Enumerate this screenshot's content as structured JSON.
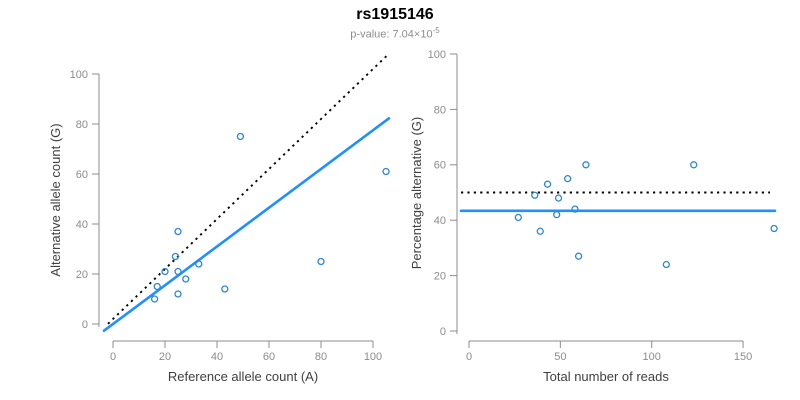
{
  "header": {
    "title": "rs1915146",
    "pvalue_base": "p-value: 7.04×10",
    "pvalue_exponent": "-5"
  },
  "colors": {
    "line_blue": "#1E90FF",
    "point_blue": "#2E86D8",
    "dotted_black": "#000000",
    "axis_gray": "#8C8C8C",
    "axis_title_dark": "#3F3F3F",
    "title_black": "#000000",
    "subtitle_gray": "#8E8E8E"
  },
  "chart_data": [
    {
      "type": "scatter",
      "name": "allele-count-scatter",
      "xlabel": "Reference allele count (A)",
      "ylabel": "Alternative allele count (G)",
      "xlim": [
        0,
        105
      ],
      "ylim": [
        0,
        107
      ],
      "xticks": [
        0,
        20,
        40,
        60,
        80,
        100
      ],
      "yticks": [
        0,
        20,
        40,
        60,
        80,
        100
      ],
      "grid": false,
      "legend": "none",
      "points": [
        [
          16,
          10
        ],
        [
          17,
          15
        ],
        [
          20,
          21
        ],
        [
          24,
          27
        ],
        [
          25,
          21
        ],
        [
          25,
          12
        ],
        [
          25,
          37
        ],
        [
          28,
          18
        ],
        [
          33,
          24
        ],
        [
          43,
          14
        ],
        [
          49,
          75
        ],
        [
          80,
          25
        ],
        [
          105,
          61
        ]
      ],
      "lines": [
        {
          "name": "expected-identity-line",
          "style": "dotted",
          "color": "#000000",
          "slope": 1,
          "intercept": 2
        },
        {
          "name": "fitted-line",
          "style": "solid",
          "color": "#1E90FF",
          "slope": 0.775,
          "intercept": 0
        }
      ]
    },
    {
      "type": "scatter",
      "name": "percentage-alternative-scatter",
      "xlabel": "Total number of reads",
      "ylabel": "Percentage alternative (G)",
      "xlim": [
        0,
        170
      ],
      "ylim": [
        0,
        100
      ],
      "xticks": [
        0,
        50,
        100,
        150
      ],
      "yticks": [
        0,
        20,
        40,
        60,
        80,
        100
      ],
      "grid": false,
      "legend": "none",
      "points": [
        [
          27,
          41
        ],
        [
          36,
          49
        ],
        [
          39,
          36
        ],
        [
          43,
          53
        ],
        [
          48,
          42
        ],
        [
          49,
          48
        ],
        [
          54,
          55
        ],
        [
          58,
          44
        ],
        [
          60,
          27
        ],
        [
          64,
          60
        ],
        [
          108,
          24
        ],
        [
          123,
          60
        ],
        [
          167,
          37
        ]
      ],
      "lines": [
        {
          "name": "expected-50pct-line",
          "style": "dotted",
          "color": "#000000",
          "value": 50
        },
        {
          "name": "fitted-percentage-line",
          "style": "solid",
          "color": "#1E90FF",
          "value": 43.4
        }
      ]
    }
  ]
}
